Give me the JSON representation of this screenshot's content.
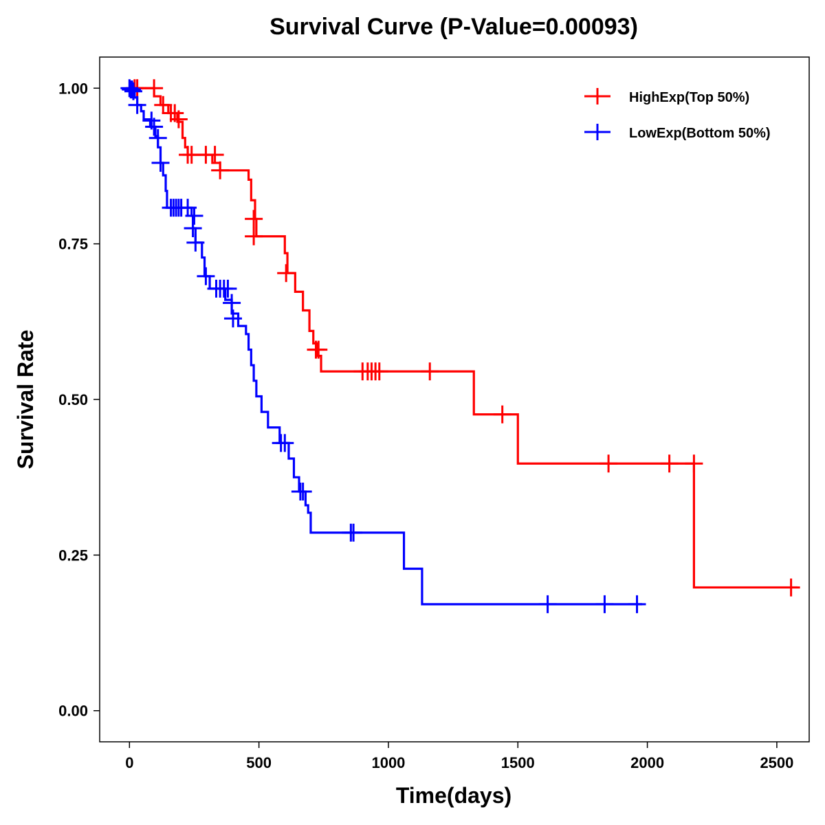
{
  "chart_data": {
    "type": "line",
    "subtype": "kaplan-meier step",
    "title": "Survival Curve (P-Value=0.00093)",
    "xlabel": "Time(days)",
    "ylabel": "Survival Rate",
    "xlim": [
      -115,
      2625
    ],
    "ylim": [
      -0.05,
      1.05
    ],
    "x_ticks": [
      0,
      500,
      1000,
      1500,
      2000,
      2500
    ],
    "x_tick_labels": [
      "0",
      "500",
      "1000",
      "1500",
      "2000",
      "2500"
    ],
    "y_ticks": [
      0,
      0.25,
      0.5,
      0.75,
      1.0
    ],
    "y_tick_labels": [
      "0.00",
      "0.25",
      "0.50",
      "0.75",
      "1.00"
    ],
    "grid": false,
    "legend_position": "top-right",
    "series": [
      {
        "name": "HighExp(Top 50%)",
        "color": "#ff0000",
        "steps": [
          [
            0,
            1.0
          ],
          [
            95,
            0.987
          ],
          [
            120,
            0.973
          ],
          [
            150,
            0.96
          ],
          [
            185,
            0.946
          ],
          [
            205,
            0.92
          ],
          [
            215,
            0.905
          ],
          [
            225,
            0.893
          ],
          [
            320,
            0.88
          ],
          [
            350,
            0.868
          ],
          [
            460,
            0.853
          ],
          [
            470,
            0.82
          ],
          [
            485,
            0.79
          ],
          [
            490,
            0.762
          ],
          [
            600,
            0.735
          ],
          [
            610,
            0.703
          ],
          [
            640,
            0.673
          ],
          [
            670,
            0.643
          ],
          [
            695,
            0.61
          ],
          [
            710,
            0.59
          ],
          [
            725,
            0.57
          ],
          [
            740,
            0.545
          ],
          [
            1330,
            0.476
          ],
          [
            1500,
            0.397
          ],
          [
            2180,
            0.198
          ],
          [
            2580,
            0.198
          ]
        ],
        "censored": [
          [
            20,
            1.0
          ],
          [
            30,
            1.0
          ],
          [
            95,
            1.0
          ],
          [
            130,
            0.973
          ],
          [
            160,
            0.96
          ],
          [
            175,
            0.96
          ],
          [
            190,
            0.95
          ],
          [
            225,
            0.893
          ],
          [
            240,
            0.893
          ],
          [
            295,
            0.893
          ],
          [
            330,
            0.893
          ],
          [
            350,
            0.868
          ],
          [
            480,
            0.79
          ],
          [
            480,
            0.762
          ],
          [
            605,
            0.703
          ],
          [
            720,
            0.58
          ],
          [
            730,
            0.58
          ],
          [
            900,
            0.545
          ],
          [
            920,
            0.545
          ],
          [
            935,
            0.545
          ],
          [
            950,
            0.545
          ],
          [
            965,
            0.545
          ],
          [
            1160,
            0.545
          ],
          [
            1440,
            0.476
          ],
          [
            1850,
            0.397
          ],
          [
            2085,
            0.397
          ],
          [
            2180,
            0.397
          ],
          [
            2555,
            0.198
          ]
        ]
      },
      {
        "name": "LowExp(Bottom 50%)",
        "color": "#0000ff",
        "steps": [
          [
            0,
            1.0
          ],
          [
            20,
            0.985
          ],
          [
            30,
            0.973
          ],
          [
            45,
            0.963
          ],
          [
            55,
            0.95
          ],
          [
            80,
            0.938
          ],
          [
            100,
            0.923
          ],
          [
            110,
            0.905
          ],
          [
            120,
            0.88
          ],
          [
            130,
            0.86
          ],
          [
            140,
            0.835
          ],
          [
            145,
            0.808
          ],
          [
            240,
            0.795
          ],
          [
            245,
            0.775
          ],
          [
            255,
            0.752
          ],
          [
            280,
            0.728
          ],
          [
            290,
            0.698
          ],
          [
            310,
            0.678
          ],
          [
            370,
            0.66
          ],
          [
            395,
            0.638
          ],
          [
            420,
            0.618
          ],
          [
            450,
            0.605
          ],
          [
            460,
            0.58
          ],
          [
            470,
            0.555
          ],
          [
            480,
            0.53
          ],
          [
            490,
            0.505
          ],
          [
            510,
            0.48
          ],
          [
            535,
            0.455
          ],
          [
            580,
            0.43
          ],
          [
            615,
            0.405
          ],
          [
            635,
            0.375
          ],
          [
            655,
            0.352
          ],
          [
            680,
            0.33
          ],
          [
            690,
            0.318
          ],
          [
            700,
            0.286
          ],
          [
            1060,
            0.228
          ],
          [
            1130,
            0.171
          ],
          [
            1980,
            0.171
          ]
        ],
        "censored": [
          [
            0,
            1.0
          ],
          [
            5,
            0.998
          ],
          [
            10,
            0.998
          ],
          [
            15,
            0.995
          ],
          [
            30,
            0.973
          ],
          [
            85,
            0.948
          ],
          [
            95,
            0.938
          ],
          [
            110,
            0.92
          ],
          [
            120,
            0.88
          ],
          [
            160,
            0.808
          ],
          [
            170,
            0.808
          ],
          [
            180,
            0.808
          ],
          [
            190,
            0.808
          ],
          [
            200,
            0.808
          ],
          [
            225,
            0.808
          ],
          [
            250,
            0.795
          ],
          [
            245,
            0.775
          ],
          [
            255,
            0.752
          ],
          [
            295,
            0.698
          ],
          [
            335,
            0.678
          ],
          [
            350,
            0.678
          ],
          [
            365,
            0.678
          ],
          [
            380,
            0.678
          ],
          [
            395,
            0.655
          ],
          [
            400,
            0.63
          ],
          [
            585,
            0.43
          ],
          [
            600,
            0.43
          ],
          [
            660,
            0.352
          ],
          [
            670,
            0.352
          ],
          [
            855,
            0.286
          ],
          [
            865,
            0.286
          ],
          [
            1615,
            0.171
          ],
          [
            1835,
            0.171
          ],
          [
            1960,
            0.171
          ]
        ]
      }
    ]
  }
}
